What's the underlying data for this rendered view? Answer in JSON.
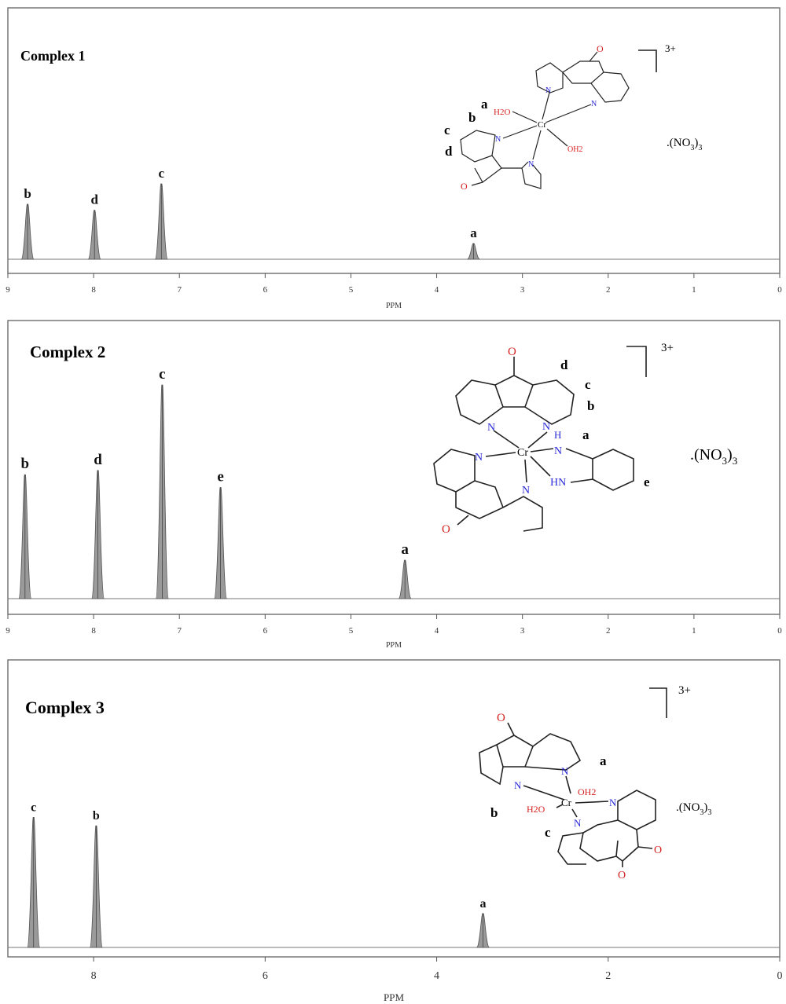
{
  "chart_data": [
    {
      "type": "line",
      "title": "Complex 1",
      "xlabel": "PPM",
      "xlim": [
        9,
        0
      ],
      "x_ticks": [
        "9",
        "8",
        "7",
        "6",
        "5",
        "4",
        "3",
        "2",
        "1",
        "0"
      ],
      "peaks": [
        {
          "label": "b",
          "ppm": 8.77,
          "height": 0.73
        },
        {
          "label": "d",
          "ppm": 7.99,
          "height": 0.65
        },
        {
          "label": "c",
          "ppm": 7.21,
          "height": 1.0
        },
        {
          "label": "a",
          "ppm": 3.57,
          "height": 0.21
        }
      ],
      "structure": {
        "charge": "3+",
        "counter_ion_prefix": ".(NO",
        "counter_ion_sub1": "3",
        "counter_ion_sub2": "3",
        "labels": [
          "a",
          "b",
          "c",
          "d"
        ],
        "metal": "Cr",
        "ligands": [
          "H2O",
          "OH2"
        ]
      }
    },
    {
      "type": "line",
      "title": "Complex 2",
      "xlabel": "PPM",
      "xlim": [
        9,
        0
      ],
      "x_ticks": [
        "9",
        "8",
        "7",
        "6",
        "5",
        "4",
        "3",
        "2",
        "1",
        "0"
      ],
      "peaks": [
        {
          "label": "b",
          "ppm": 8.8,
          "height": 0.58
        },
        {
          "label": "d",
          "ppm": 7.95,
          "height": 0.6
        },
        {
          "label": "c",
          "ppm": 7.2,
          "height": 1.0
        },
        {
          "label": "e",
          "ppm": 6.52,
          "height": 0.52
        },
        {
          "label": "a",
          "ppm": 4.37,
          "height": 0.18
        }
      ],
      "structure": {
        "charge": "3+",
        "counter_ion_prefix": ".(NO",
        "counter_ion_sub1": "3",
        "counter_ion_sub2": "3",
        "labels": [
          "d",
          "c",
          "b",
          "a",
          "e"
        ],
        "metal": "Cr",
        "amine": [
          "H",
          "N",
          "HN"
        ]
      }
    },
    {
      "type": "line",
      "title": "Complex 3",
      "xlabel": "PPM",
      "xlim": [
        9,
        0
      ],
      "x_ticks": [
        "8",
        "6",
        "4",
        "2",
        "0"
      ],
      "peaks": [
        {
          "label": "c",
          "ppm": 8.7,
          "height": 0.92
        },
        {
          "label": "b",
          "ppm": 7.97,
          "height": 0.86
        },
        {
          "label": "a",
          "ppm": 3.46,
          "height": 0.24
        }
      ],
      "structure": {
        "charge": "3+",
        "counter_ion_prefix": ".(NO",
        "counter_ion_sub1": "3",
        "counter_ion_sub2": "3",
        "labels": [
          "a",
          "b",
          "c"
        ],
        "metal": "Cr",
        "ligands": [
          "OH2",
          "H2O"
        ]
      }
    }
  ]
}
